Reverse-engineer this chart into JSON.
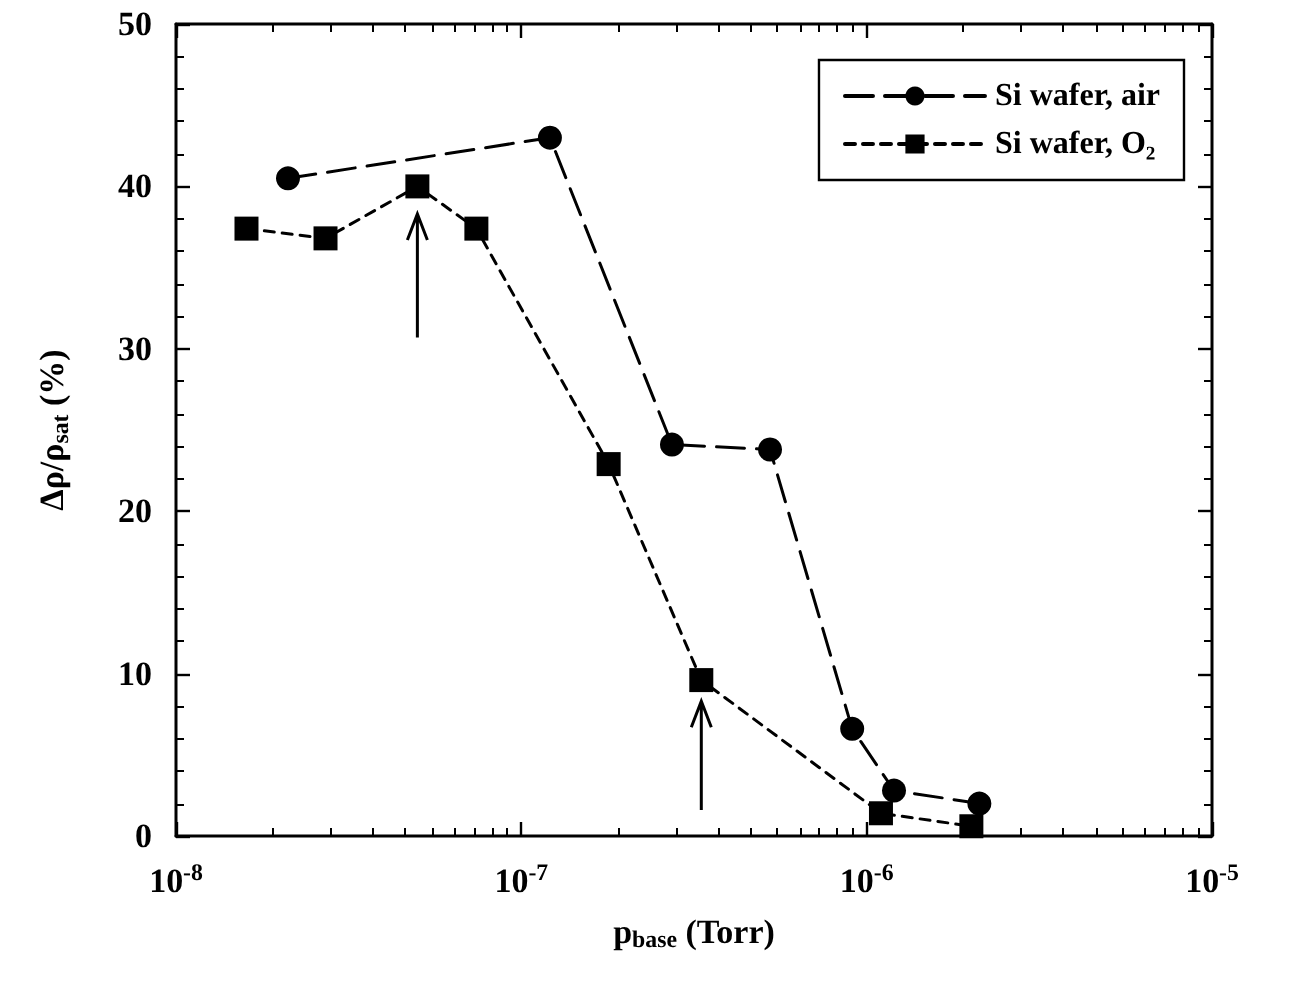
{
  "chart_data": {
    "type": "line",
    "xlabel": "p$_{base}$ (Torr)",
    "ylabel": "Δρ/ρ$_{sat}$ (%)",
    "log": "x",
    "xlim": [
      1e-08,
      1e-05
    ],
    "xticks": [
      {
        "value": 1e-08,
        "label": "10$^{-8}$"
      },
      {
        "value": 1e-07,
        "label": "10$^{-7}$"
      },
      {
        "value": 1e-06,
        "label": "10$^{-6}$"
      },
      {
        "value": 1e-05,
        "label": "10$^{-5}$"
      }
    ],
    "ylim": [
      0,
      50
    ],
    "yticks": [
      0,
      10,
      20,
      30,
      40,
      50
    ],
    "grid": false,
    "legend": "top right",
    "series": [
      {
        "name": "Si wafer, air",
        "color": "#000000",
        "marker": "circle",
        "line_style": "dashed",
        "x": [
          2.11e-08,
          1.21e-07,
          2.73e-07,
          5.25e-07,
          9.08e-07,
          1.2e-06,
          2.12e-06
        ],
        "values": [
          40.5,
          43.0,
          24.1,
          23.8,
          6.6,
          2.8,
          2.0
        ]
      },
      {
        "name": "Si wafer, O₂",
        "color": "#000000",
        "marker": "square",
        "line_style": "dotted",
        "x": [
          1.6e-08,
          2.71e-08,
          5e-08,
          7.41e-08,
          1.79e-07,
          3.32e-07,
          1.1e-06,
          2.01e-06
        ],
        "values": [
          37.4,
          36.8,
          40.0,
          37.4,
          22.9,
          9.6,
          1.4,
          0.6
        ]
      }
    ]
  }
}
